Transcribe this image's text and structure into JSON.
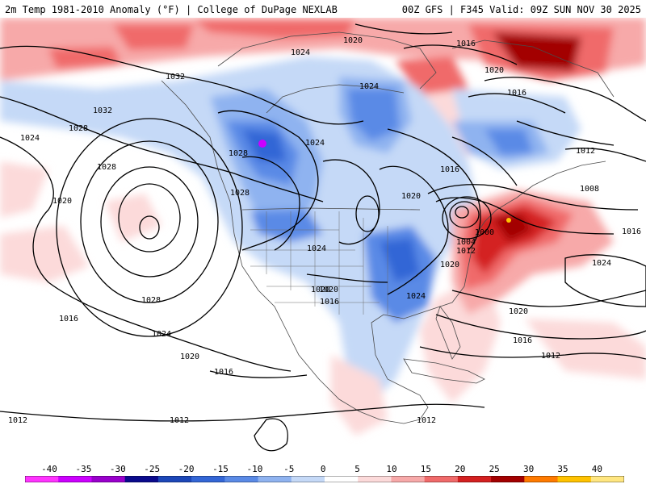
{
  "header": {
    "title": "2m Temp 1981-2010 Anomaly (°F) | College of DuPage NEXLAB",
    "run_info": "00Z GFS | F345 Valid: 09Z SUN NOV 30 2025"
  },
  "isobar_labels": [
    {
      "id": "l1",
      "text": "1020"
    },
    {
      "id": "l2",
      "text": "1016"
    },
    {
      "id": "l3",
      "text": "1024"
    },
    {
      "id": "l4",
      "text": "1032"
    },
    {
      "id": "l5",
      "text": "1032"
    },
    {
      "id": "l6",
      "text": "1028"
    },
    {
      "id": "l7",
      "text": "1024"
    },
    {
      "id": "l8",
      "text": "1028"
    },
    {
      "id": "l9",
      "text": "1028"
    },
    {
      "id": "l10",
      "text": "1028"
    },
    {
      "id": "l11",
      "text": "1020"
    },
    {
      "id": "l12",
      "text": "1024"
    },
    {
      "id": "l13",
      "text": "1020"
    },
    {
      "id": "l14",
      "text": "1016"
    },
    {
      "id": "l15",
      "text": "1024"
    },
    {
      "id": "l16",
      "text": "1012"
    },
    {
      "id": "l17",
      "text": "1016"
    },
    {
      "id": "l18",
      "text": "1008"
    },
    {
      "id": "l19",
      "text": "1020"
    },
    {
      "id": "l20",
      "text": "1000"
    },
    {
      "id": "l21",
      "text": "1004"
    },
    {
      "id": "l22",
      "text": "1012"
    },
    {
      "id": "l23",
      "text": "1020"
    },
    {
      "id": "l24",
      "text": "1024"
    },
    {
      "id": "l25",
      "text": "1028"
    },
    {
      "id": "l26",
      "text": "1016"
    },
    {
      "id": "l27",
      "text": "1024"
    },
    {
      "id": "l28",
      "text": "1020"
    },
    {
      "id": "l29",
      "text": "1016"
    },
    {
      "id": "l30",
      "text": "1020"
    },
    {
      "id": "l31",
      "text": "1016"
    },
    {
      "id": "l32",
      "text": "1024"
    },
    {
      "id": "l33",
      "text": "1020"
    },
    {
      "id": "l34",
      "text": "1016"
    },
    {
      "id": "l35",
      "text": "1012"
    },
    {
      "id": "l36",
      "text": "1012"
    },
    {
      "id": "l37",
      "text": "1012"
    },
    {
      "id": "l38",
      "text": "1012"
    },
    {
      "id": "l39",
      "text": "1020"
    },
    {
      "id": "l40",
      "text": "1016"
    },
    {
      "id": "l41",
      "text": "1024"
    }
  ],
  "legend": {
    "ticks": [
      "-40",
      "-35",
      "-30",
      "-25",
      "-20",
      "-15",
      "-10",
      "-5",
      "0",
      "5",
      "10",
      "15",
      "20",
      "25",
      "30",
      "35",
      "40"
    ],
    "colors": [
      "#ff33ff",
      "#cc00ff",
      "#9900cc",
      "#0a0a8c",
      "#1c47b8",
      "#3366d6",
      "#5a8ae6",
      "#8fb3f0",
      "#c5d9f7",
      "#ffffff",
      "#fcdada",
      "#f7a9a9",
      "#f06a6a",
      "#d42020",
      "#a30000",
      "#ff7a00",
      "#ffc200",
      "#ffe680"
    ]
  }
}
